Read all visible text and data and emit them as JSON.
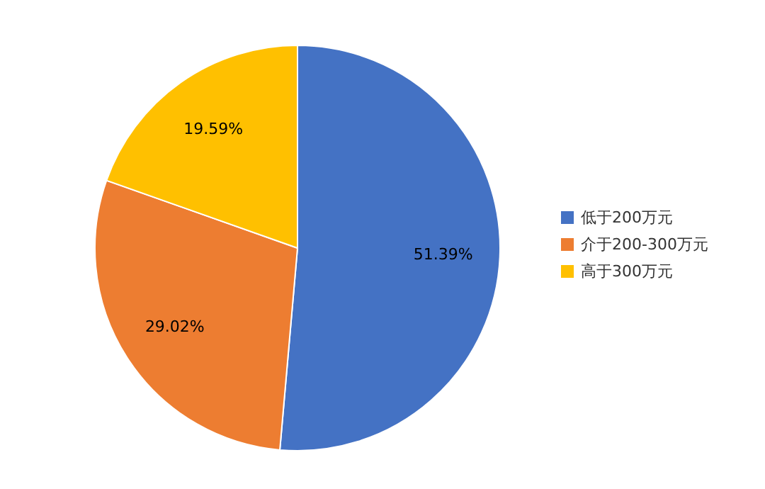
{
  "chart_data": {
    "type": "pie",
    "categories": [
      "低于200万元",
      "介于200-300万元",
      "高于300万元"
    ],
    "values": [
      51.39,
      29.02,
      19.59
    ],
    "colors": [
      "#4472c4",
      "#ed7d31",
      "#ffc000"
    ],
    "value_labels": [
      "51.39%",
      "29.02%",
      "19.59%"
    ],
    "legend": "right"
  }
}
